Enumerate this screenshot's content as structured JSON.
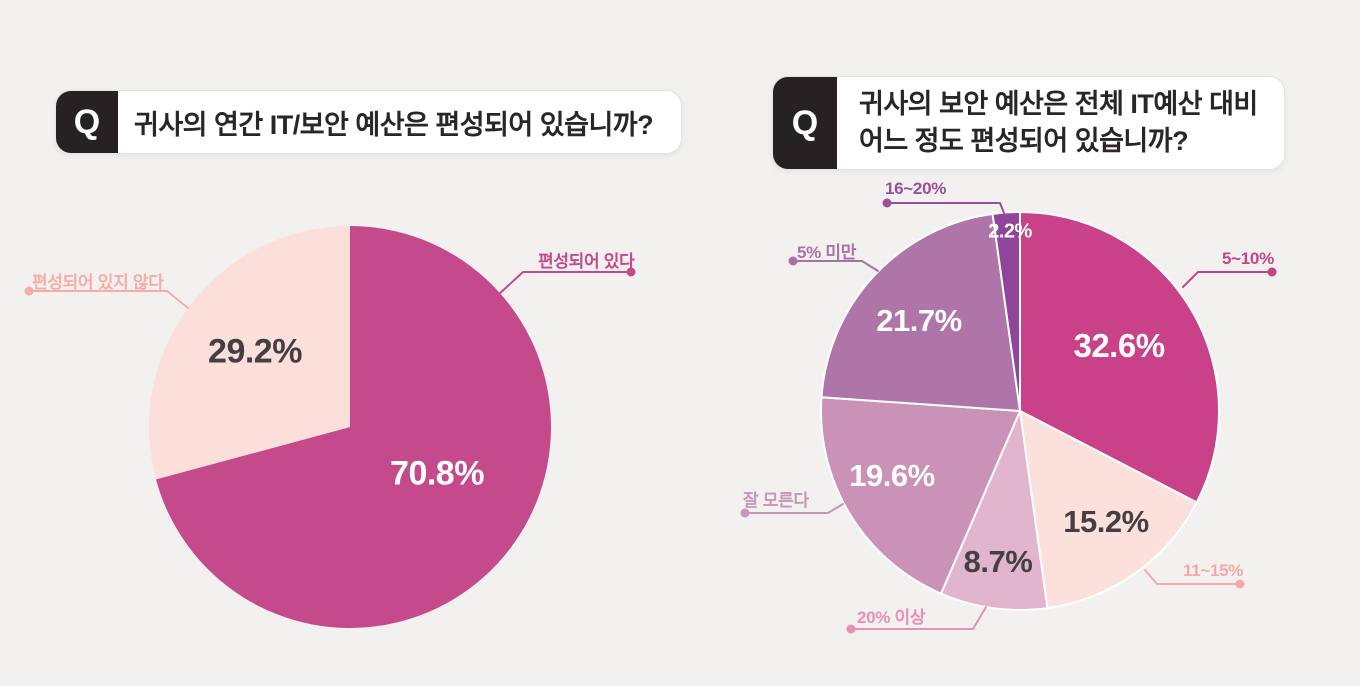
{
  "background": "#F2F1F0",
  "q_badge": "Q",
  "chart_data": [
    {
      "type": "pie",
      "id": "annual-it-security-budget",
      "title": "귀사의 연간 IT/보안 예산은 편성되어 있습니까?",
      "title_lines": [
        "귀사의 연간 IT/보안 예산은 편성되어 있습니까?"
      ],
      "unit": "%",
      "start_angle_deg": 0,
      "direction": "clockwise",
      "legend_position": "callouts",
      "slices": [
        {
          "label": "편성되어 있다",
          "value": 70.8,
          "value_text": "70.8%",
          "color": "#C44A8C",
          "value_color": "#FFFFFF",
          "callout_color": "#C4498B"
        },
        {
          "label": "편성되어 있지 않다",
          "value": 29.2,
          "value_text": "29.2%",
          "color": "#FCDFDA",
          "value_color": "#434041",
          "callout_color": "#F6ACA7"
        }
      ]
    },
    {
      "type": "pie",
      "id": "security-budget-share-of-it",
      "title": "귀사의 보안 예산은 전체 IT예산 대비 어느 정도 편성되어 있습니까?",
      "title_lines": [
        "귀사의 보안 예산은 전체 IT예산 대비",
        "어느 정도 편성되어 있습니까?"
      ],
      "unit": "%",
      "start_angle_deg": 0,
      "direction": "clockwise",
      "legend_position": "callouts",
      "slices": [
        {
          "label": "5~10%",
          "value": 32.6,
          "value_text": "32.6%",
          "color": "#C84189",
          "value_color": "#FFFFFF",
          "callout_color": "#C64585"
        },
        {
          "label": "11~15%",
          "value": 15.2,
          "value_text": "15.2%",
          "color": "#FCE0DB",
          "value_color": "#434041",
          "callout_color": "#F5A9A5"
        },
        {
          "label": "20% 이상",
          "value": 8.7,
          "value_text": "8.7%",
          "color": "#E2B5CE",
          "value_color": "#434041",
          "callout_color": "#E78FB5"
        },
        {
          "label": "잘 모른다",
          "value": 19.6,
          "value_text": "19.6%",
          "color": "#C992B6",
          "value_color": "#FFFFFF",
          "callout_color": "#C795B8"
        },
        {
          "label": "5% 미만",
          "value": 21.7,
          "value_text": "21.7%",
          "color": "#AF74A8",
          "value_color": "#FFFFFF",
          "callout_color": "#A873A4"
        },
        {
          "label": "16~20%",
          "value": 2.2,
          "value_text": "2.2%",
          "color": "#90459A",
          "value_color": "#FFFFFF",
          "callout_color": "#9B4F9A"
        }
      ]
    }
  ]
}
